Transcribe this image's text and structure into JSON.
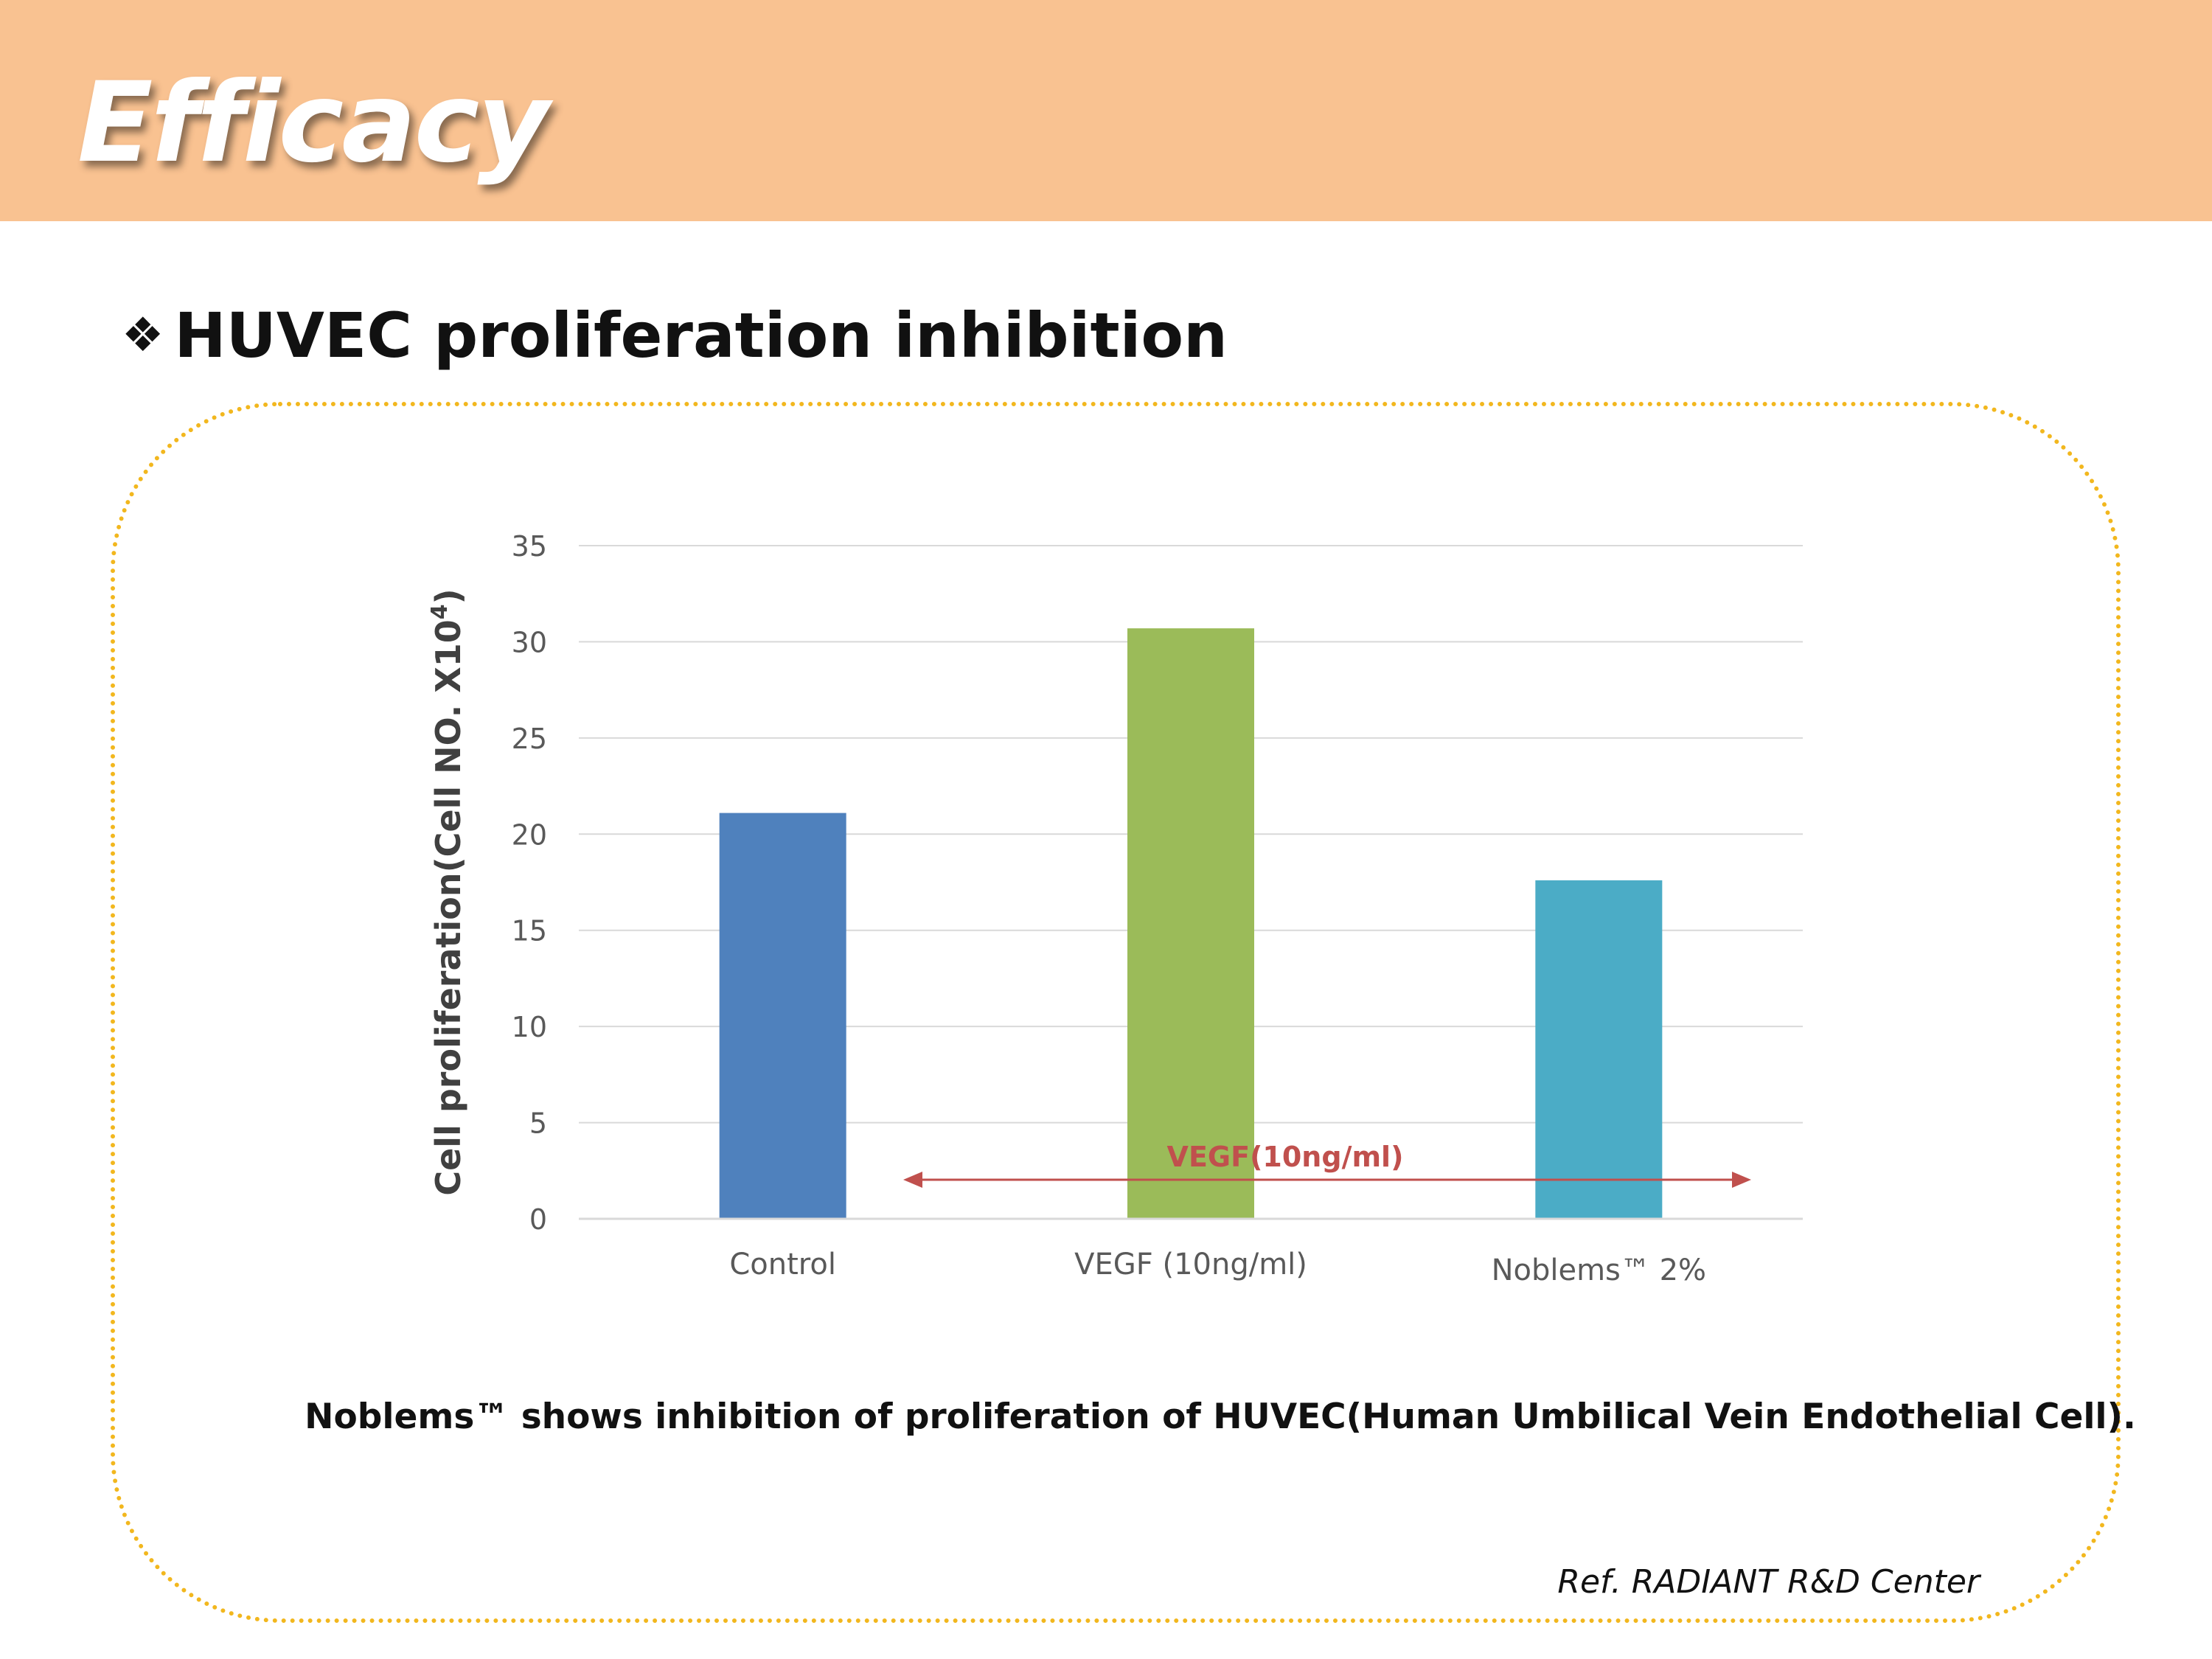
{
  "header": {
    "title": "Efficacy"
  },
  "section": {
    "bullet": "❖",
    "heading": "HUVEC proliferation inhibition"
  },
  "colors": {
    "header_bg": "#f9c291",
    "frame_border": "#f2b71e",
    "bar_control": "#4f81bd",
    "bar_vegf": "#9bbb59",
    "bar_noblems": "#4bacc6",
    "annotation": "#c0504d"
  },
  "chart_data": {
    "type": "bar",
    "title": "",
    "xlabel": "",
    "ylabel": "Cell proliferation(Cell NO. X10",
    "ylabel_superscript": "4",
    "ylabel_suffix": ")",
    "categories": [
      "Control",
      "VEGF (10ng/ml)",
      "Noblems™ 2%"
    ],
    "values": [
      21.1,
      30.7,
      17.6
    ],
    "ylim": [
      0,
      35
    ],
    "yticks": [
      0,
      5,
      10,
      15,
      20,
      25,
      30,
      35
    ],
    "grid": true,
    "annotation": {
      "label": "VEGF(10ng/ml)",
      "type": "double-arrow",
      "spans": "from between Control and VEGF to past Noblems™ 2%"
    }
  },
  "caption": "Noblems™ shows inhibition of proliferation of HUVEC(Human Umbilical Vein Endothelial Cell).",
  "reference": "Ref. RADIANT R&D Center"
}
